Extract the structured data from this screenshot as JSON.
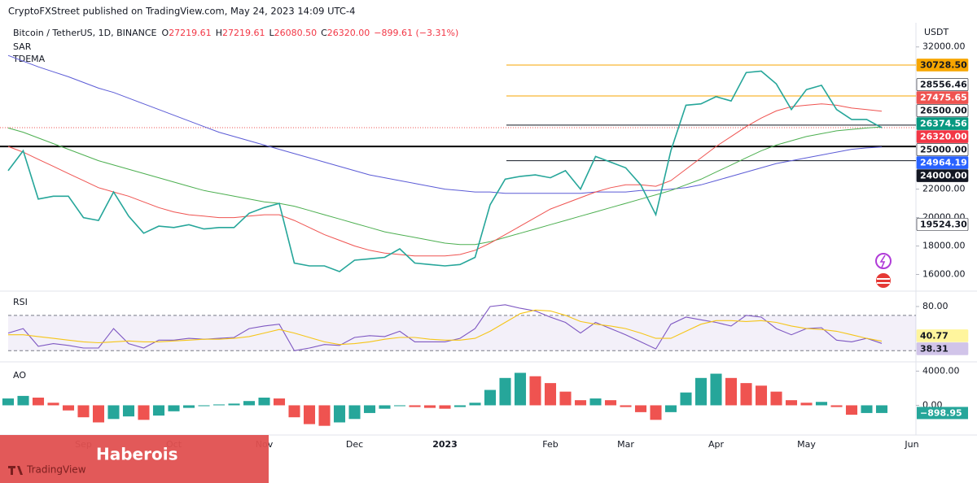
{
  "header": {
    "publisher": "CryptoFXStreet published on TradingView.com, May 24, 2023 14:09 UTC-4"
  },
  "legend": {
    "symbol": "Bitcoin / TetherUS, 1D, BINANCE",
    "ohlc": [
      {
        "key": "O",
        "value": "27219.61"
      },
      {
        "key": "H",
        "value": "27219.61"
      },
      {
        "key": "L",
        "value": "26080.50"
      },
      {
        "key": "C",
        "value": "26320.00"
      }
    ],
    "change": "−899.61 (−3.31%)",
    "indicators": [
      "SAR",
      "TDEMA"
    ]
  },
  "chart_data": [
    {
      "type": "line",
      "unit": "USDT",
      "categories": [
        null,
        null,
        null,
        null,
        null,
        "Sep",
        null,
        null,
        null,
        null,
        null,
        "Oct",
        null,
        null,
        null,
        null,
        null,
        "Nov",
        null,
        null,
        null,
        null,
        null,
        "Dec",
        null,
        null,
        null,
        null,
        null,
        "2023",
        null,
        null,
        null,
        null,
        null,
        null,
        "Feb",
        null,
        null,
        null,
        null,
        "Mar",
        null,
        null,
        null,
        null,
        null,
        "Apr",
        null,
        null,
        null,
        null,
        null,
        "May",
        null,
        null,
        null,
        null,
        null,
        null,
        "Jun"
      ],
      "series": [
        {
          "color": "#26a69a",
          "width": 1.6,
          "values": [
            23300,
            24700,
            21300,
            21500,
            21500,
            20000,
            19800,
            21800,
            20100,
            18900,
            19400,
            19300,
            19500,
            19200,
            19300,
            19300,
            20300,
            20700,
            21000,
            16800,
            16600,
            16600,
            16200,
            17000,
            17100,
            17200,
            17800,
            16800,
            16700,
            16600,
            16700,
            17200,
            20900,
            22700,
            22900,
            23000,
            22800,
            23300,
            22000,
            24300,
            23900,
            23500,
            22300,
            20200,
            24700,
            27900,
            28000,
            28500,
            28200,
            30200,
            30300,
            29400,
            27600,
            29000,
            29300,
            27600,
            26900,
            26900,
            26320,
            null,
            null
          ]
        },
        {
          "color": "#ef5350",
          "width": 1,
          "values": [
            25000,
            24600,
            24100,
            23600,
            23100,
            22600,
            22100,
            21800,
            21500,
            21100,
            20700,
            20400,
            20200,
            20100,
            20000,
            20000,
            20100,
            20200,
            20200,
            19800,
            19300,
            18800,
            18400,
            18000,
            17700,
            17500,
            17400,
            17300,
            17300,
            17300,
            17400,
            17700,
            18200,
            18800,
            19400,
            20000,
            20600,
            21000,
            21400,
            21800,
            22100,
            22300,
            22300,
            22200,
            22600,
            23400,
            24200,
            25000,
            25700,
            26400,
            27000,
            27500,
            27800,
            27900,
            28000,
            27900,
            27700,
            27600,
            27475.65,
            null,
            null
          ]
        },
        {
          "color": "#4caf50",
          "width": 1,
          "values": [
            26300,
            26000,
            25600,
            25200,
            24800,
            24400,
            24000,
            23700,
            23400,
            23100,
            22800,
            22500,
            22200,
            21900,
            21700,
            21500,
            21300,
            21100,
            21000,
            20800,
            20500,
            20200,
            19900,
            19600,
            19300,
            19000,
            18800,
            18600,
            18400,
            18200,
            18100,
            18100,
            18300,
            18600,
            18900,
            19200,
            19500,
            19800,
            20100,
            20400,
            20700,
            21000,
            21300,
            21600,
            21900,
            22300,
            22700,
            23200,
            23700,
            24200,
            24700,
            25100,
            25400,
            25700,
            25900,
            26100,
            26200,
            26300,
            26374.56,
            null,
            null
          ]
        },
        {
          "color": "#5b5bd6",
          "width": 1,
          "values": [
            31400,
            31000,
            30600,
            30250,
            29900,
            29500,
            29100,
            28800,
            28400,
            28000,
            27600,
            27200,
            26800,
            26400,
            26000,
            25700,
            25400,
            25100,
            24800,
            24500,
            24200,
            23900,
            23600,
            23300,
            23000,
            22800,
            22600,
            22400,
            22200,
            22000,
            21900,
            21800,
            21800,
            21700,
            21700,
            21700,
            21700,
            21700,
            21700,
            21800,
            21800,
            21800,
            21900,
            21900,
            22000,
            22100,
            22300,
            22600,
            22900,
            23200,
            23500,
            23800,
            24000,
            24200,
            24400,
            24600,
            24800,
            24900,
            24964.19,
            null,
            null
          ]
        }
      ],
      "ylim": [
        15000,
        33700
      ],
      "yticks": [
        {
          "value": 16000,
          "label": "16000.00"
        },
        {
          "value": 18000,
          "label": "18000.00"
        },
        {
          "value": 20000,
          "label": "20000.00"
        },
        {
          "value": 22000,
          "label": "22000.00"
        },
        {
          "value": 32000,
          "label": "32000.00"
        }
      ],
      "levels": [
        {
          "value": 30728.5,
          "color": "#f7a600",
          "width": 1
        },
        {
          "value": 28556.46,
          "color": "#f7a600",
          "width": 1
        },
        {
          "value": 26500,
          "color": "#131722",
          "width": 1
        },
        {
          "value": 25000,
          "color": "#000000",
          "width": 2
        },
        {
          "value": 24000,
          "color": "#131722",
          "width": 1
        }
      ],
      "last_price": {
        "value": 26320,
        "color": "#ef5350"
      },
      "price_labels": [
        {
          "value": 30728.5,
          "label": "30728.50",
          "background": "#f7a600",
          "color": "#131722"
        },
        {
          "value": 28556.46,
          "label": "28556.46",
          "background": "#ffffff",
          "color": "#131722"
        },
        {
          "value": 27475.65,
          "label": "27475.65",
          "background": "#ef5350",
          "color": "#ffffff"
        },
        {
          "value": 26500,
          "label": "26500.00",
          "background": "#ffffff",
          "color": "#131722"
        },
        {
          "value": 26374.56,
          "label": "26374.56",
          "background": "#089981",
          "color": "#ffffff"
        },
        {
          "value": 26320,
          "label": "26320.00",
          "background": "#f23645",
          "color": "#ffffff"
        },
        {
          "value": 25000,
          "label": "25000.00",
          "background": "#ffffff",
          "color": "#131722"
        },
        {
          "value": 24964.19,
          "label": "24964.19",
          "background": "#2962ff",
          "color": "#ffffff"
        },
        {
          "value": 24000,
          "label": "24000.00",
          "background": "#131722",
          "color": "#ffffff"
        },
        {
          "value": 19524.3,
          "label": "19524.30",
          "background": "#ffffff",
          "color": "#131722"
        }
      ]
    },
    {
      "type": "rsi",
      "title": "RSI",
      "series": [
        {
          "color": "#7e57c2",
          "values": [
            50,
            55,
            35,
            38,
            36,
            33,
            33,
            55,
            38,
            33,
            42,
            42,
            44,
            43,
            44,
            45,
            55,
            58,
            60,
            30,
            33,
            37,
            36,
            45,
            47,
            46,
            52,
            40,
            40,
            40,
            44,
            55,
            80,
            82,
            78,
            75,
            68,
            62,
            50,
            62,
            55,
            48,
            40,
            32,
            60,
            68,
            65,
            62,
            58,
            70,
            68,
            55,
            48,
            55,
            56,
            42,
            40,
            44,
            38.31
          ]
        },
        {
          "color": "#f5c518",
          "values": [
            48,
            48,
            46,
            44,
            42,
            40,
            39,
            40,
            41,
            40,
            40,
            41,
            42,
            43,
            43,
            44,
            46,
            50,
            54,
            50,
            45,
            40,
            37,
            38,
            40,
            43,
            45,
            45,
            43,
            42,
            42,
            44,
            52,
            62,
            72,
            76,
            75,
            70,
            63,
            60,
            58,
            55,
            50,
            44,
            44,
            52,
            60,
            64,
            64,
            63,
            64,
            62,
            58,
            55,
            54,
            52,
            48,
            44,
            40.77
          ]
        }
      ],
      "value_labels": [
        {
          "value": 40.77,
          "label": "40.77",
          "background": "#fff59d",
          "color": "#131722"
        },
        {
          "value": 38.31,
          "label": "38.31",
          "background": "#d1c4e9",
          "color": "#131722"
        }
      ],
      "bands": [
        30,
        70
      ],
      "ylim": [
        22,
        91
      ],
      "yticks": [
        {
          "value": 80,
          "label": "80.00"
        }
      ]
    },
    {
      "type": "histogram",
      "title": "AO",
      "values": [
        800,
        1100,
        900,
        300,
        -600,
        -1400,
        -2000,
        -1600,
        -1300,
        -1700,
        -1200,
        -700,
        -300,
        -100,
        100,
        200,
        500,
        900,
        800,
        -1400,
        -2200,
        -2400,
        -2000,
        -1600,
        -900,
        -400,
        -100,
        -200,
        -300,
        -400,
        -200,
        300,
        1800,
        3200,
        3800,
        3400,
        2600,
        1600,
        600,
        800,
        600,
        -200,
        -800,
        -1700,
        -800,
        1500,
        3200,
        3700,
        3200,
        2600,
        2300,
        1600,
        600,
        300,
        400,
        -200,
        -1100,
        -900,
        -898.95
      ],
      "colors": {
        "up": "#26a69a",
        "down": "#ef5350"
      },
      "last_label": {
        "value": -898.95,
        "label": "−898.95",
        "background": "#26a69a",
        "color": "#ffffff"
      },
      "ylim": [
        -3000,
        4800
      ],
      "yticks": [
        {
          "value": 4000,
          "label": "4000.00"
        },
        {
          "value": 0,
          "label": "0.00"
        }
      ]
    }
  ],
  "overlay": {
    "label": "Haberois",
    "brand": "TradingView"
  }
}
